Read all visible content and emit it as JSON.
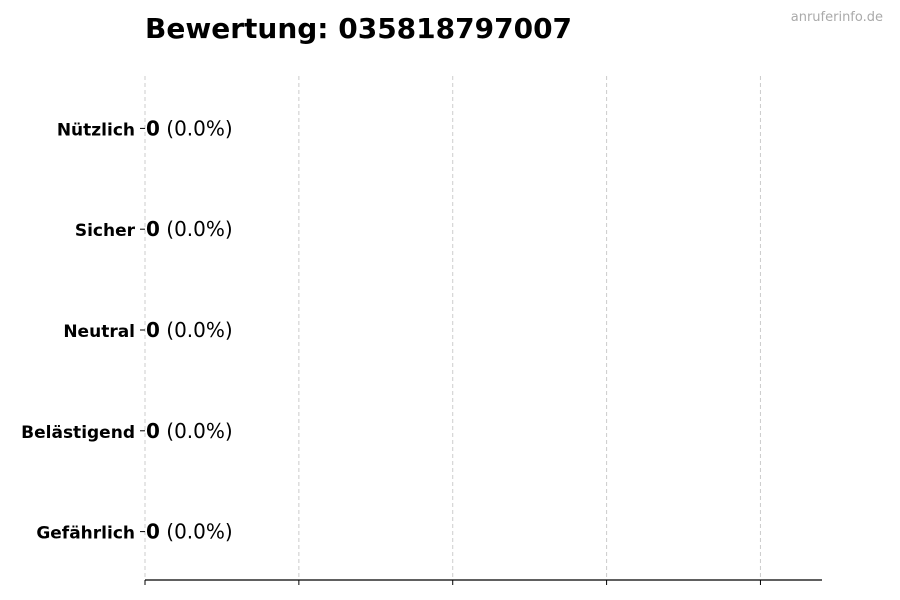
{
  "chart_data": {
    "type": "bar",
    "orientation": "horizontal",
    "title": "Bewertung: 035818797007",
    "watermark": "anruferinfo.de",
    "categories": [
      "Nützlich",
      "Sicher",
      "Neutral",
      "Belästigend",
      "Gefährlich"
    ],
    "values": [
      0,
      0,
      0,
      0,
      0
    ],
    "data_labels": [
      {
        "count": "0",
        "percent": "(0.0%)"
      },
      {
        "count": "0",
        "percent": "(0.0%)"
      },
      {
        "count": "0",
        "percent": "(0.0%)"
      },
      {
        "count": "0",
        "percent": "(0.0%)"
      },
      {
        "count": "0",
        "percent": "(0.0%)"
      }
    ],
    "xlabel": "",
    "ylabel": "",
    "xlim": [
      0,
      4.4
    ],
    "xticks": [
      0,
      1,
      2,
      3,
      4
    ],
    "xtick_labels_visible": false,
    "grid": "x, dashed",
    "colors": {
      "bar_edge": "#000000",
      "grid": "#cccccc",
      "watermark": "#aaaaaa"
    }
  }
}
